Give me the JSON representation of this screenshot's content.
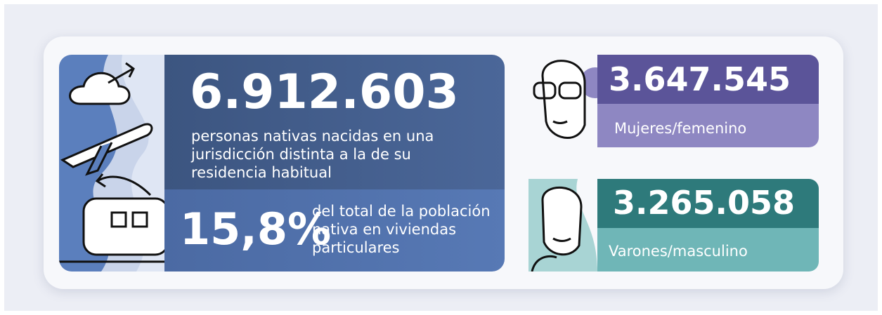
{
  "main": {
    "total": "6.912.603",
    "description": "personas nativas nacidas en una jurisdicción distinta a la de su residencia habitual",
    "percent": "15,8%",
    "percent_description": "del total de la población nativa en viviendas particulares"
  },
  "women": {
    "value": "3.647.545",
    "label": "Mujeres/femenino"
  },
  "men": {
    "value": "3.265.058",
    "label": "Varones/masculino"
  }
}
